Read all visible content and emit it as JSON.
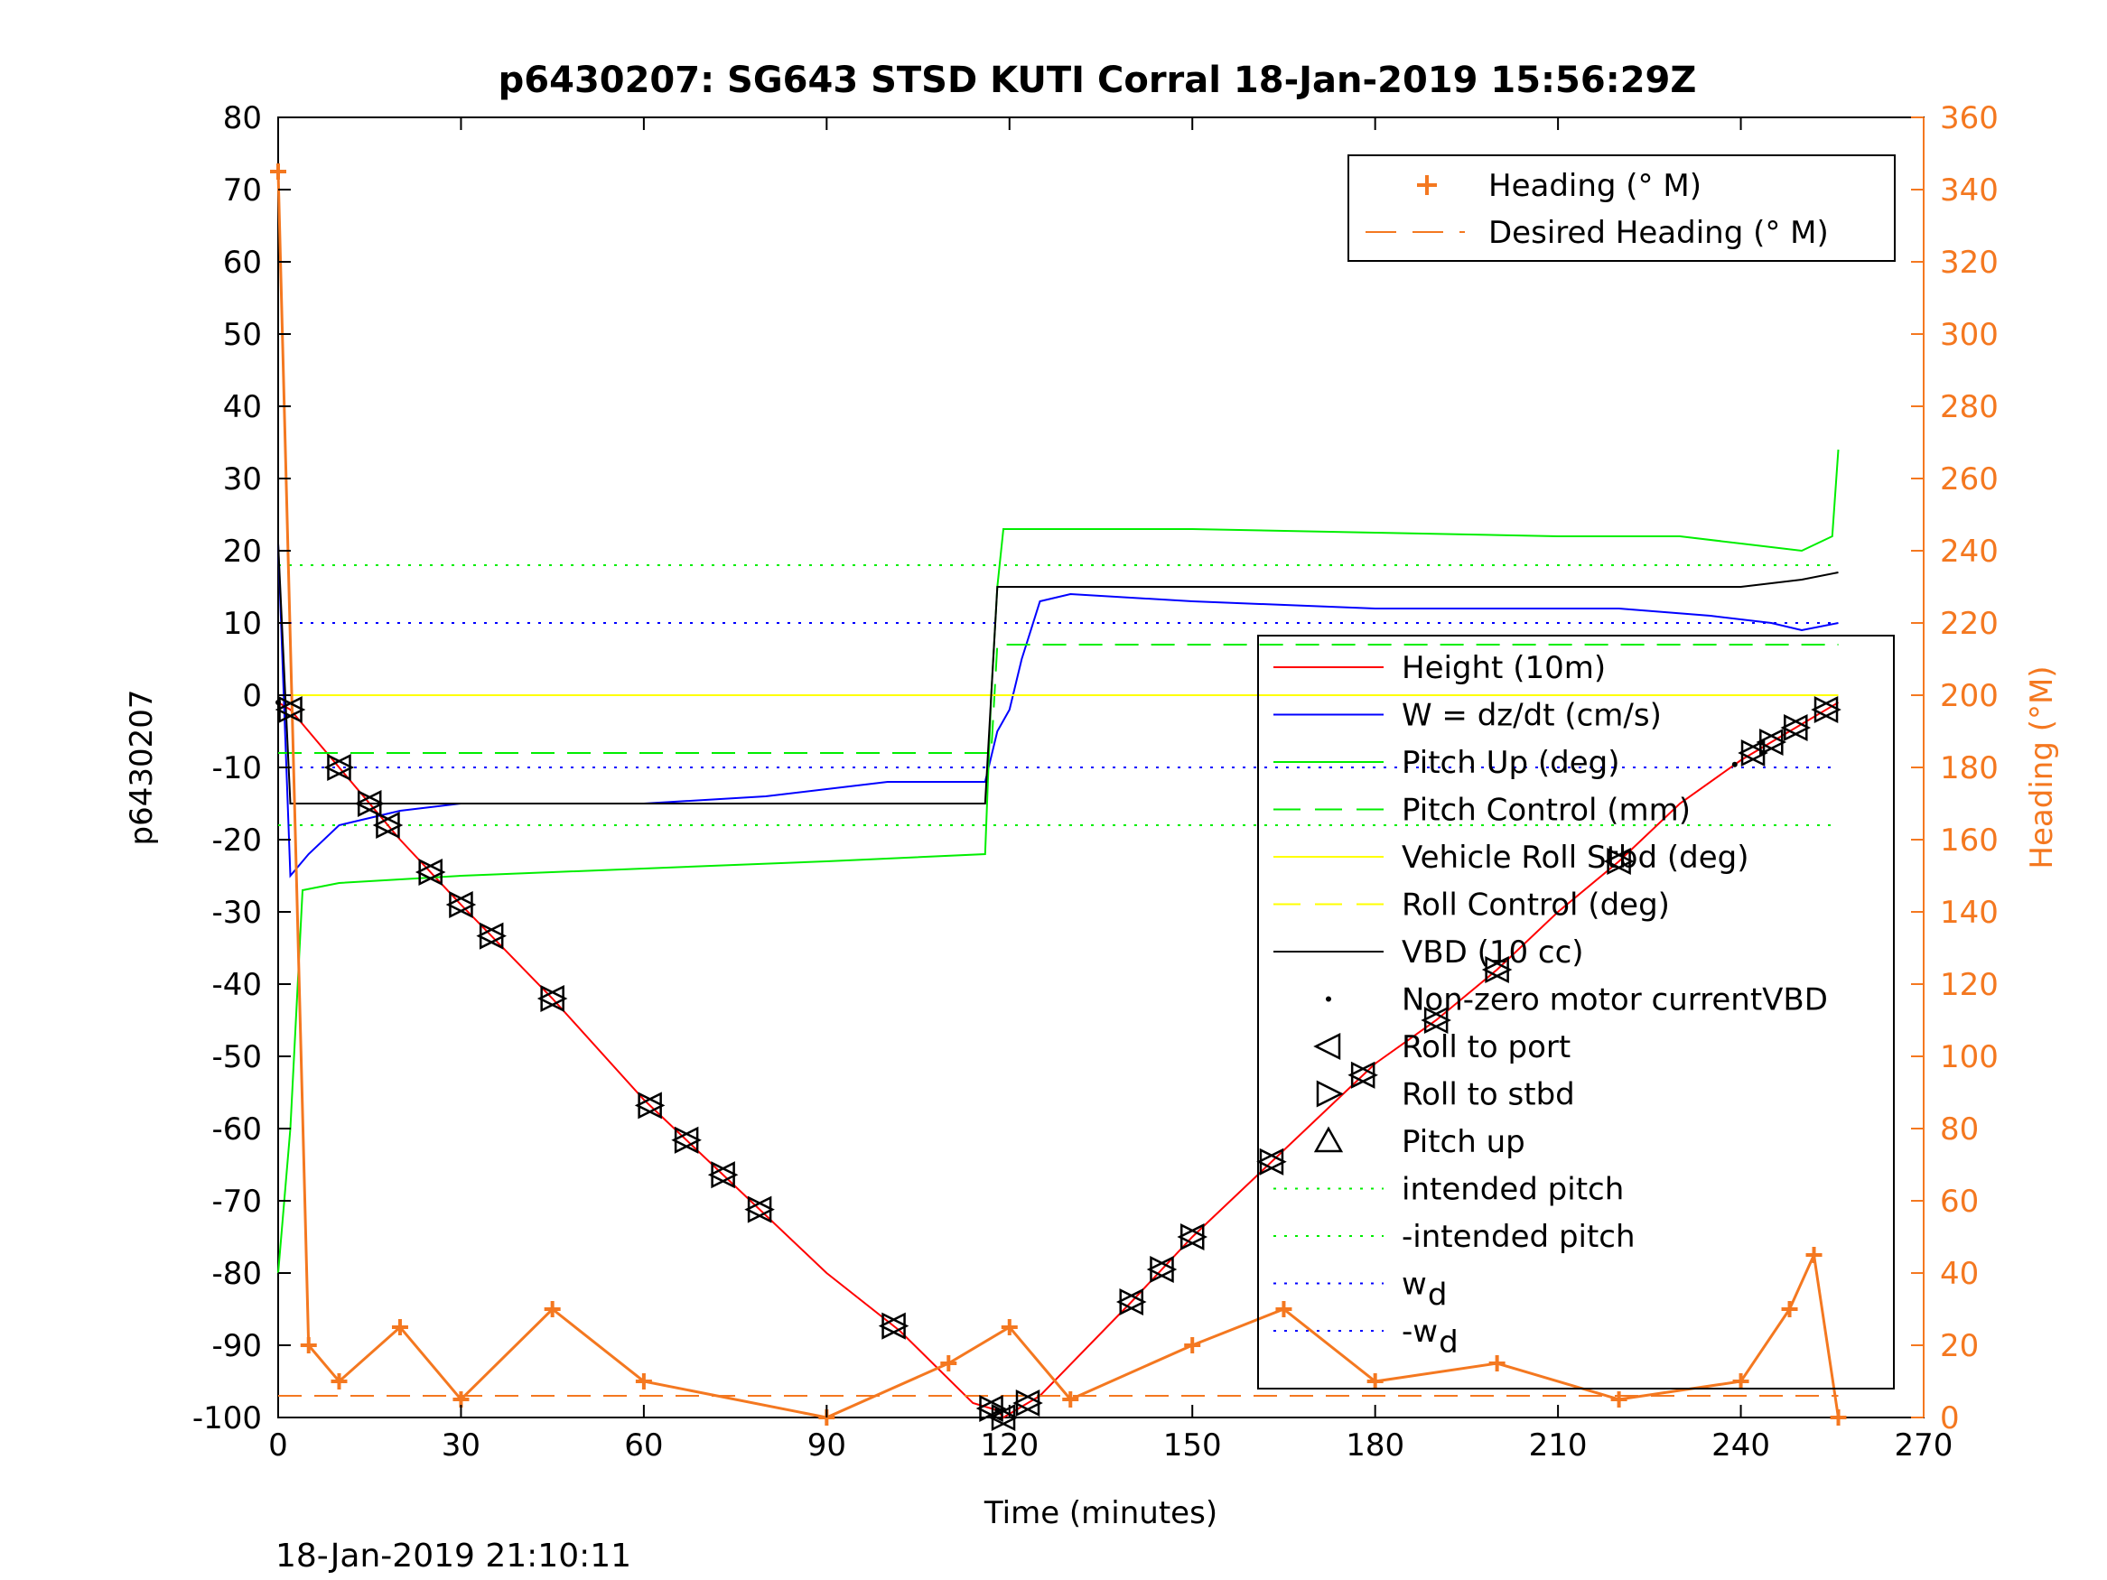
{
  "chart_data": {
    "type": "line",
    "title": "p6430207: SG643 STSD KUTI Corral 18-Jan-2019 15:56:29Z",
    "xlabel": "Time (minutes)",
    "ylabel": "p6430207",
    "ylabel_right": "Heading (°M)",
    "xlim": [
      0,
      270
    ],
    "ylim": [
      -100,
      80
    ],
    "ylim_right": [
      0,
      360
    ],
    "xticks": [
      "0",
      "30",
      "60",
      "90",
      "120",
      "150",
      "180",
      "210",
      "240",
      "270"
    ],
    "yticks": [
      "80",
      "70",
      "60",
      "50",
      "40",
      "30",
      "20",
      "10",
      "0",
      "-10",
      "-20",
      "-30",
      "-40",
      "-50",
      "-60",
      "-70",
      "-80",
      "-90",
      "-100"
    ],
    "yticks_right": [
      "360",
      "340",
      "320",
      "300",
      "280",
      "260",
      "240",
      "220",
      "200",
      "180",
      "160",
      "140",
      "120",
      "100",
      "80",
      "60",
      "40",
      "20",
      "0"
    ],
    "colors": {
      "height": "#ff0000",
      "w": "#0000ff",
      "pitch": "#00ee00",
      "roll": "#ffff00",
      "vbd": "#000000",
      "heading": "#f47820"
    },
    "legend_heading": [
      {
        "label": "Heading (° M)"
      },
      {
        "label": "Desired Heading (° M)"
      }
    ],
    "legend_main": [
      {
        "label": "Height (10m)"
      },
      {
        "label": "W = dz/dt (cm/s)"
      },
      {
        "label": "Pitch Up (deg)"
      },
      {
        "label": "Pitch Control (mm)"
      },
      {
        "label": "Vehicle Roll Stbd (deg)"
      },
      {
        "label": "Roll Control (deg)"
      },
      {
        "label": "VBD (10 cc)"
      },
      {
        "label": "Non-zero motor currentVBD"
      },
      {
        "label": "Roll to port"
      },
      {
        "label": "Roll to stbd"
      },
      {
        "label": "Pitch up"
      },
      {
        "label": "intended pitch"
      },
      {
        "label": "-intended pitch"
      },
      {
        "label": "w"
      },
      {
        "label": "-w"
      }
    ],
    "legend_subscript": "d",
    "series": [
      {
        "name": "Height (10m)",
        "x": [
          0,
          2,
          10,
          20,
          30,
          45,
          60,
          75,
          90,
          102,
          114,
          118,
          119,
          121,
          125,
          140,
          150,
          160,
          170,
          180,
          190,
          200,
          210,
          220,
          230,
          240,
          248,
          256
        ],
        "y": [
          -1,
          -2,
          -10,
          -20,
          -29,
          -42,
          -56,
          -68,
          -80,
          -88,
          -98,
          -99,
          -100,
          -99,
          -97,
          -84,
          -75,
          -67,
          -59,
          -51,
          -45,
          -38,
          -30,
          -23,
          -15,
          -9,
          -5,
          -1
        ]
      },
      {
        "name": "W = dz/dt (cm/s)",
        "x": [
          0,
          2,
          5,
          10,
          20,
          30,
          45,
          60,
          80,
          100,
          116,
          118,
          120,
          122,
          125,
          130,
          150,
          180,
          200,
          220,
          235,
          245,
          250,
          256
        ],
        "y": [
          21,
          -25,
          -22,
          -18,
          -16,
          -15,
          -15,
          -15,
          -14,
          -12,
          -12,
          -5,
          -2,
          5,
          13,
          14,
          13,
          12,
          12,
          12,
          11,
          10,
          9,
          10
        ]
      },
      {
        "name": "Pitch Up (deg)",
        "x": [
          0,
          2,
          4,
          10,
          30,
          60,
          90,
          116,
          117,
          118,
          119,
          120,
          150,
          180,
          210,
          230,
          240,
          250,
          255,
          256
        ],
        "y": [
          -80,
          -60,
          -27,
          -26,
          -25,
          -24,
          -23,
          -22,
          0,
          15,
          23,
          23,
          23,
          22.5,
          22,
          22,
          21,
          20,
          22,
          34
        ]
      },
      {
        "name": "Pitch Control (mm)",
        "x": [
          0,
          117,
          118,
          256
        ],
        "y": [
          -8,
          -8,
          7,
          7
        ]
      },
      {
        "name": "Vehicle Roll Stbd (deg)",
        "x": [
          0,
          256
        ],
        "y": [
          0,
          0
        ]
      },
      {
        "name": "Roll Control (deg)",
        "x": [
          0,
          256
        ],
        "y": [
          0,
          0
        ]
      },
      {
        "name": "VBD (10 cc)",
        "x": [
          0,
          2,
          116,
          118,
          240,
          250,
          256
        ],
        "y": [
          21,
          -15,
          -15,
          15,
          15,
          16,
          17
        ]
      },
      {
        "name": "Heading (° M)",
        "x": [
          0,
          5,
          10,
          20,
          30,
          45,
          60,
          90,
          110,
          120,
          130,
          150,
          165,
          180,
          200,
          220,
          240,
          248,
          252,
          256
        ],
        "y": [
          345,
          20,
          10,
          25,
          5,
          30,
          10,
          0,
          15,
          25,
          5,
          20,
          30,
          10,
          15,
          5,
          10,
          30,
          45,
          0
        ]
      },
      {
        "name": "Desired Heading (° M)",
        "x": [
          0,
          256
        ],
        "y": [
          6,
          6
        ]
      }
    ],
    "reference_lines": [
      {
        "label": "intended pitch",
        "y": 18
      },
      {
        "label": "-intended pitch",
        "y": -18
      },
      {
        "label": "w",
        "y": 10
      },
      {
        "label": "-w",
        "y": -10
      }
    ],
    "markers": {
      "roll_to_port_x": [
        2,
        10,
        15,
        18,
        25,
        30,
        35,
        45,
        61,
        67,
        73,
        79,
        101,
        117,
        119,
        123,
        140,
        145,
        150,
        163,
        178,
        190,
        200,
        220,
        242,
        245,
        249,
        254
      ],
      "nonzero_motor_vbd_x": [
        0,
        118,
        239
      ]
    },
    "grid": false,
    "legend_position": "top-right"
  },
  "footer": {
    "timestamp": "18-Jan-2019 21:10:11"
  }
}
